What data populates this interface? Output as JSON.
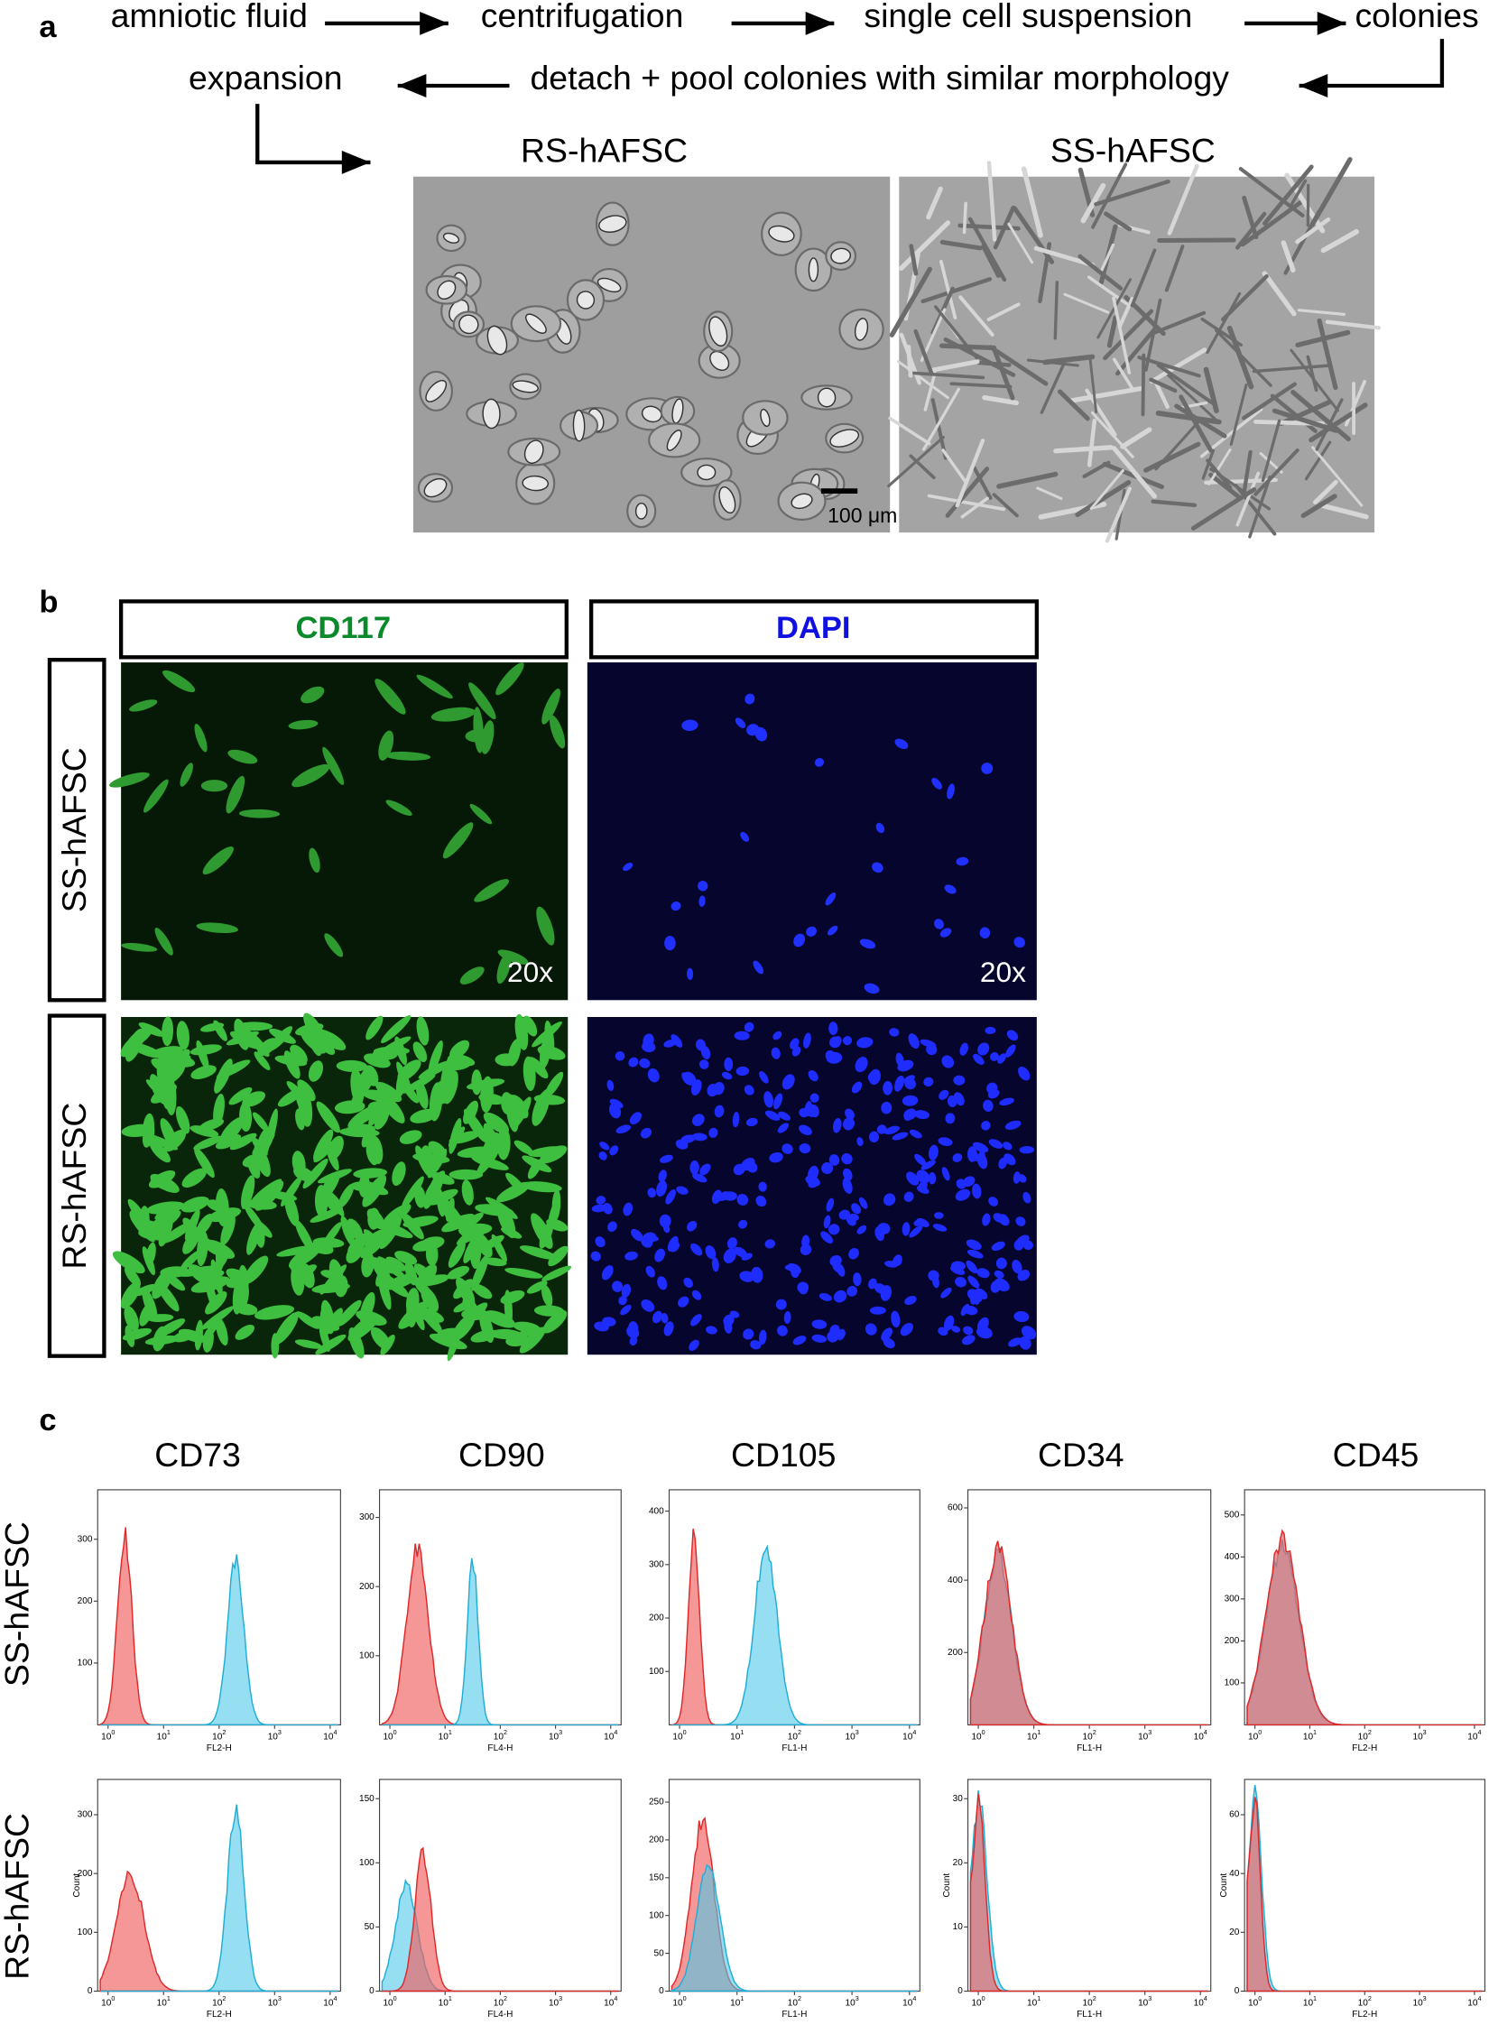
{
  "panel_a": {
    "label": "a",
    "flow": [
      "amniotic fluid",
      "centrifugation",
      "single cell suspension",
      "colonies"
    ],
    "pool_step": "detach + pool colonies with similar morphology",
    "expansion": "expansion",
    "images": [
      "RS-hAFSC",
      "SS-hAFSC"
    ],
    "scale_bar": "100 μm"
  },
  "panel_b": {
    "label": "b",
    "columns": [
      "CD117",
      "DAPI"
    ],
    "rows": [
      "SS-hAFSC",
      "RS-hAFSC"
    ],
    "magnification": "20x"
  },
  "panel_c": {
    "label": "c",
    "markers": [
      "CD73",
      "CD90",
      "CD105",
      "CD34",
      "CD45"
    ],
    "rows": [
      "SS-hAFSC",
      "RS-hAFSC"
    ],
    "x_tick_base": "10",
    "x_tick_exponents": [
      "0",
      "1",
      "2",
      "3",
      "4"
    ],
    "count_label": "Count",
    "plots": [
      [
        {
          "xlabel": "FL2-H",
          "ylim": [
            0,
            380
          ],
          "yticks": [
            100,
            200,
            300
          ]
        },
        {
          "xlabel": "FL4-H",
          "ylim": [
            0,
            340
          ],
          "yticks": [
            100,
            200,
            300
          ]
        },
        {
          "xlabel": "FL1-H",
          "ylim": [
            0,
            440
          ],
          "yticks": [
            100,
            200,
            300,
            400
          ]
        },
        {
          "xlabel": "FL1-H",
          "ylim": [
            0,
            650
          ],
          "yticks": [
            200,
            400,
            600
          ]
        },
        {
          "xlabel": "FL2-H",
          "ylim": [
            0,
            560
          ],
          "yticks": [
            100,
            200,
            300,
            400,
            500
          ]
        }
      ],
      [
        {
          "xlabel": "FL2-H",
          "ylim": [
            0,
            360
          ],
          "yticks": [
            0,
            100,
            200,
            300
          ],
          "count": true
        },
        {
          "xlabel": "FL4-H",
          "ylim": [
            0,
            165
          ],
          "yticks": [
            0,
            50,
            100,
            150
          ]
        },
        {
          "xlabel": "FL1-H",
          "ylim": [
            0,
            280
          ],
          "yticks": [
            0,
            50,
            100,
            150,
            200,
            250
          ]
        },
        {
          "xlabel": "FL1-H",
          "ylim": [
            0,
            33
          ],
          "yticks": [
            0,
            10,
            20,
            30
          ],
          "count": true
        },
        {
          "xlabel": "FL2-H",
          "ylim": [
            0,
            72
          ],
          "yticks": [
            0,
            20,
            40,
            60
          ],
          "count": true
        }
      ]
    ]
  }
}
